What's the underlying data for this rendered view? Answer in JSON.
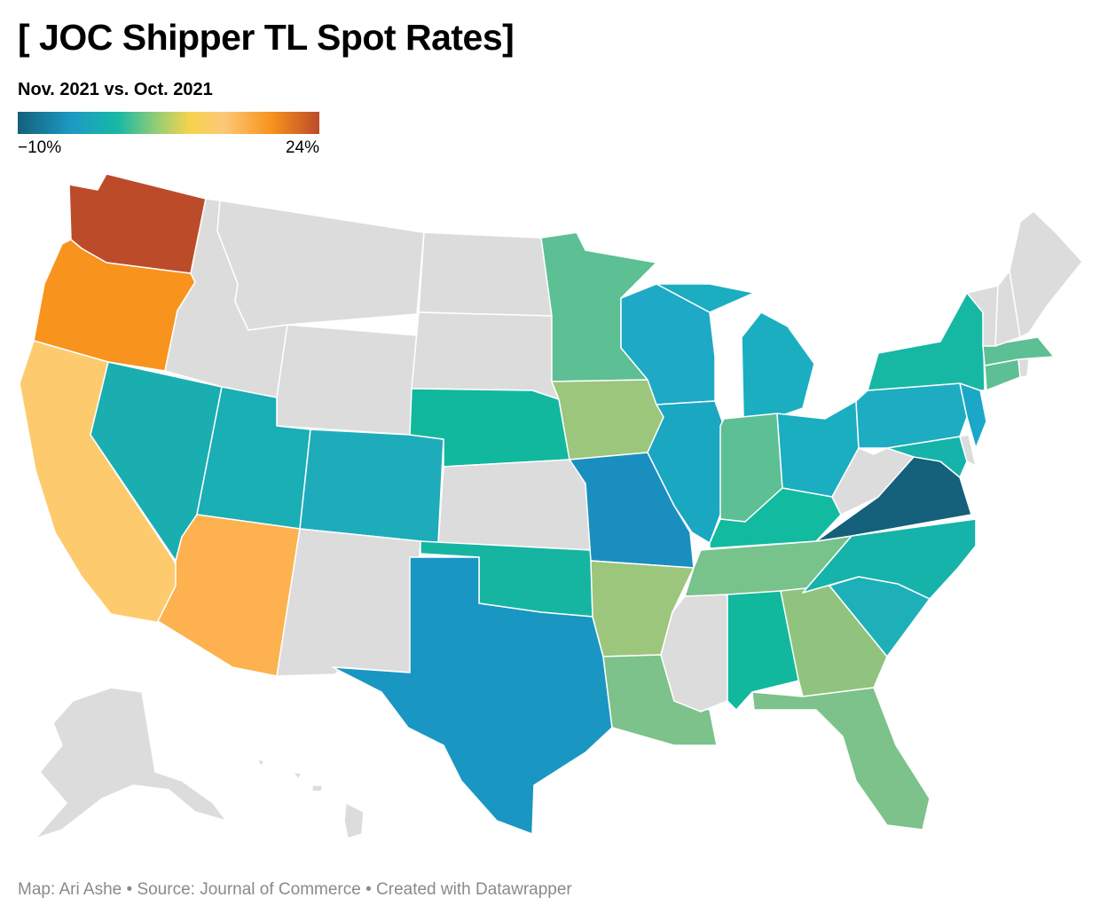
{
  "header": {
    "title": "[ JOC Shipper TL Spot Rates]",
    "subtitle": "Nov. 2021 vs. Oct. 2021"
  },
  "legend": {
    "min_label": "−10%",
    "max_label": "24%",
    "min_value": -10,
    "max_value": 24,
    "colors": [
      "#15607a",
      "#1d9ac4",
      "#16b8a6",
      "#9ccf72",
      "#f5d34b",
      "#fdc978",
      "#f8931e",
      "#bc4b2a"
    ]
  },
  "map": {
    "no_data_color": "#dcdcdc",
    "states": [
      {
        "name": "Washington",
        "color": "#bc4b2a"
      },
      {
        "name": "Oregon",
        "color": "#f8931e"
      },
      {
        "name": "California",
        "color": "#fdcb6e"
      },
      {
        "name": "Nevada",
        "color": "#1aaeb0"
      },
      {
        "name": "Idaho",
        "color": "#dcdcdc"
      },
      {
        "name": "Montana",
        "color": "#dcdcdc"
      },
      {
        "name": "Wyoming",
        "color": "#dcdcdc"
      },
      {
        "name": "Utah",
        "color": "#1aaeb5"
      },
      {
        "name": "Colorado",
        "color": "#1eacba"
      },
      {
        "name": "Arizona",
        "color": "#fdb24f"
      },
      {
        "name": "New Mexico",
        "color": "#dcdcdc"
      },
      {
        "name": "North Dakota",
        "color": "#dcdcdc"
      },
      {
        "name": "South Dakota",
        "color": "#dcdcdc"
      },
      {
        "name": "Nebraska",
        "color": "#12b89d"
      },
      {
        "name": "Kansas",
        "color": "#dcdcdc"
      },
      {
        "name": "Oklahoma",
        "color": "#16b5a2"
      },
      {
        "name": "Texas",
        "color": "#1a96c2"
      },
      {
        "name": "Minnesota",
        "color": "#5dbf94"
      },
      {
        "name": "Iowa",
        "color": "#9cc67c"
      },
      {
        "name": "Missouri",
        "color": "#1a8fbf"
      },
      {
        "name": "Arkansas",
        "color": "#9cc67c"
      },
      {
        "name": "Louisiana",
        "color": "#7cc28a"
      },
      {
        "name": "Wisconsin",
        "color": "#1ea9c6"
      },
      {
        "name": "Illinois",
        "color": "#1aa7c2"
      },
      {
        "name": "Michigan",
        "color": "#1aaec0"
      },
      {
        "name": "Indiana",
        "color": "#5dbf94"
      },
      {
        "name": "Ohio",
        "color": "#1aaec0"
      },
      {
        "name": "Kentucky",
        "color": "#12baa0"
      },
      {
        "name": "Tennessee",
        "color": "#78c28b"
      },
      {
        "name": "Mississippi",
        "color": "#dcdcdc"
      },
      {
        "name": "Alabama",
        "color": "#12b89d"
      },
      {
        "name": "Georgia",
        "color": "#90c47e"
      },
      {
        "name": "Florida",
        "color": "#7cc28a"
      },
      {
        "name": "South Carolina",
        "color": "#1eb0b9"
      },
      {
        "name": "North Carolina",
        "color": "#16b3aa"
      },
      {
        "name": "Virginia",
        "color": "#15607a"
      },
      {
        "name": "West Virginia",
        "color": "#dcdcdc"
      },
      {
        "name": "Pennsylvania",
        "color": "#1eacc3"
      },
      {
        "name": "New York",
        "color": "#16b8a4"
      },
      {
        "name": "New Jersey",
        "color": "#1aa7c8"
      },
      {
        "name": "Delaware",
        "color": "#dcdcdc"
      },
      {
        "name": "Maryland",
        "color": "#16b3aa"
      },
      {
        "name": "Connecticut",
        "color": "#5dbf94"
      },
      {
        "name": "Rhode Island",
        "color": "#dcdcdc"
      },
      {
        "name": "Massachusetts",
        "color": "#5dbf94"
      },
      {
        "name": "Vermont",
        "color": "#dcdcdc"
      },
      {
        "name": "New Hampshire",
        "color": "#dcdcdc"
      },
      {
        "name": "Maine",
        "color": "#dcdcdc"
      },
      {
        "name": "Alaska",
        "color": "#dcdcdc"
      },
      {
        "name": "Hawaii",
        "color": "#dcdcdc"
      }
    ]
  },
  "footer": {
    "credit": "Map: Ari Ashe • Source: Journal of Commerce • Created with Datawrapper"
  }
}
